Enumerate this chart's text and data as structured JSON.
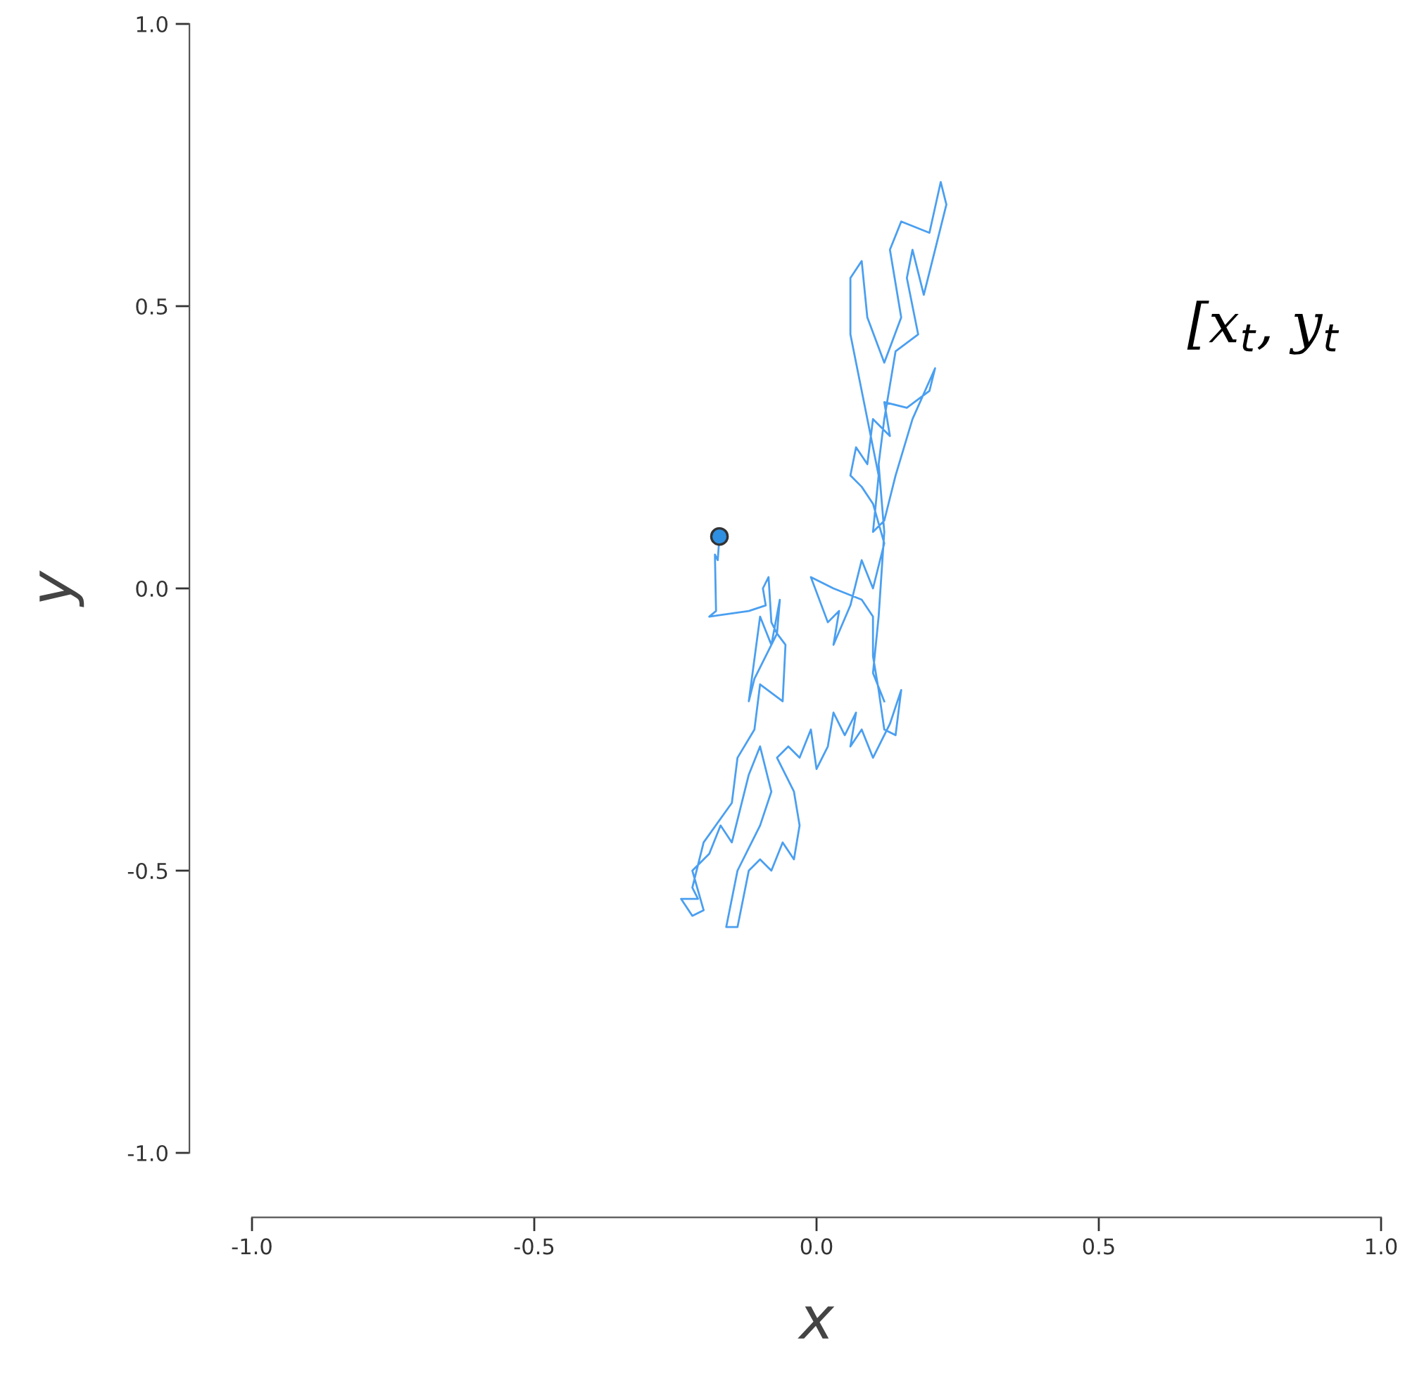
{
  "chart_data": {
    "type": "line",
    "xlabel": "x",
    "ylabel": "y",
    "annotations": [
      "[x$_{t}$, y$_{t}$"
    ],
    "xlim": [
      -1.0,
      1.0
    ],
    "ylim": [
      -1.0,
      1.0
    ],
    "xticks": [
      {
        "value": -1.0,
        "label": "-1.0"
      },
      {
        "value": -0.5,
        "label": "-0.5"
      },
      {
        "value": 0.0,
        "label": "0.0"
      },
      {
        "value": 0.5,
        "label": "0.5"
      },
      {
        "value": 1.0,
        "label": "1.0"
      }
    ],
    "yticks": [
      {
        "value": -1.0,
        "label": "-1.0"
      },
      {
        "value": -0.5,
        "label": "-0.5"
      },
      {
        "value": 0.0,
        "label": "0.0"
      },
      {
        "value": 0.5,
        "label": "0.5"
      },
      {
        "value": 1.0,
        "label": "1.0"
      }
    ],
    "grid": false,
    "legend": false,
    "series": [
      {
        "color": "#4a9ff0",
        "marker": "none",
        "line_style": "solid",
        "x": [
          -0.172,
          -0.175,
          -0.18,
          -0.178,
          -0.19,
          -0.12,
          -0.09,
          -0.095,
          -0.085,
          -0.08,
          -0.07,
          -0.065,
          -0.08,
          -0.1,
          -0.12,
          -0.11,
          -0.07,
          -0.055,
          -0.06,
          -0.1,
          -0.11,
          -0.14,
          -0.15,
          -0.2,
          -0.22,
          -0.21,
          -0.24,
          -0.22,
          -0.2,
          -0.22,
          -0.19,
          -0.17,
          -0.15,
          -0.12,
          -0.1,
          -0.08,
          -0.1,
          -0.12,
          -0.14,
          -0.16,
          -0.14,
          -0.12,
          -0.1,
          -0.08,
          -0.06,
          -0.04,
          -0.03,
          -0.04,
          -0.07,
          -0.05,
          -0.03,
          -0.01,
          0.0,
          0.02,
          0.03,
          0.05,
          0.07,
          0.06,
          0.08,
          0.1,
          0.13,
          0.15,
          0.14,
          0.12,
          0.11,
          0.1,
          0.1,
          0.08,
          0.03,
          -0.01,
          0.02,
          0.04,
          0.03,
          0.06,
          0.08,
          0.1,
          0.12,
          0.1,
          0.08,
          0.06,
          0.07,
          0.09,
          0.1,
          0.13,
          0.12,
          0.16,
          0.2,
          0.21,
          0.17,
          0.14,
          0.12,
          0.1,
          0.11,
          0.08,
          0.06,
          0.06,
          0.08,
          0.09,
          0.12,
          0.15,
          0.13,
          0.15,
          0.2,
          0.22,
          0.23,
          0.21,
          0.19,
          0.17,
          0.16,
          0.18,
          0.14,
          0.12,
          0.11,
          0.12,
          0.11,
          0.1,
          0.12
        ],
        "values": [
          0.092,
          0.05,
          0.06,
          -0.04,
          -0.05,
          -0.04,
          -0.03,
          0.0,
          0.02,
          -0.06,
          -0.08,
          -0.02,
          -0.1,
          -0.05,
          -0.2,
          -0.16,
          -0.08,
          -0.1,
          -0.2,
          -0.17,
          -0.25,
          -0.3,
          -0.38,
          -0.45,
          -0.53,
          -0.55,
          -0.55,
          -0.58,
          -0.57,
          -0.5,
          -0.47,
          -0.42,
          -0.45,
          -0.33,
          -0.28,
          -0.36,
          -0.42,
          -0.46,
          -0.5,
          -0.6,
          -0.6,
          -0.5,
          -0.48,
          -0.5,
          -0.45,
          -0.48,
          -0.42,
          -0.36,
          -0.3,
          -0.28,
          -0.3,
          -0.25,
          -0.32,
          -0.28,
          -0.22,
          -0.26,
          -0.22,
          -0.28,
          -0.25,
          -0.3,
          -0.24,
          -0.18,
          -0.26,
          -0.25,
          -0.18,
          -0.12,
          -0.05,
          -0.02,
          0.0,
          0.02,
          -0.06,
          -0.04,
          -0.1,
          -0.03,
          0.05,
          0.0,
          0.08,
          0.15,
          0.18,
          0.2,
          0.25,
          0.22,
          0.3,
          0.27,
          0.33,
          0.32,
          0.35,
          0.39,
          0.3,
          0.2,
          0.12,
          0.1,
          0.2,
          0.35,
          0.45,
          0.55,
          0.58,
          0.48,
          0.4,
          0.48,
          0.6,
          0.65,
          0.63,
          0.72,
          0.68,
          0.6,
          0.52,
          0.6,
          0.55,
          0.45,
          0.42,
          0.3,
          0.22,
          0.1,
          -0.05,
          -0.15,
          -0.2
        ]
      },
      {
        "type": "scatter",
        "color": "#2f8fe0",
        "marker": "circle",
        "x": [
          -0.172
        ],
        "values": [
          0.092
        ]
      }
    ]
  }
}
